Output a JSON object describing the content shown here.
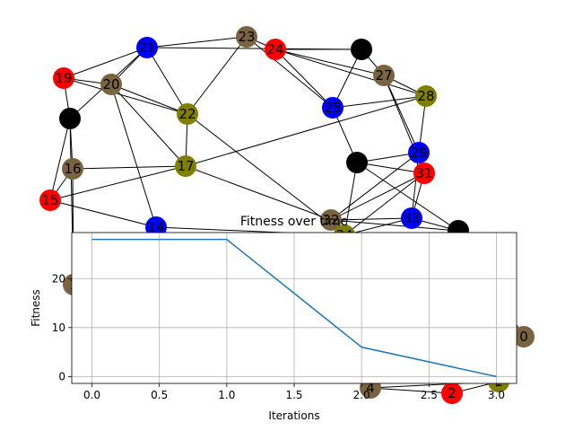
{
  "colors": {
    "blue": "#0000ff",
    "red": "#ff0000",
    "brown": "#7a6440",
    "olive": "#808000",
    "black": "#000000",
    "line": "#1f77b4",
    "grid": "#b0b0b0"
  },
  "graph": {
    "nodes": [
      {
        "id": "21",
        "color": "blue"
      },
      {
        "id": "23",
        "color": "brown"
      },
      {
        "id": "24",
        "color": "red"
      },
      {
        "id": "",
        "color": "black"
      },
      {
        "id": "19",
        "color": "red"
      },
      {
        "id": "20",
        "color": "brown"
      },
      {
        "id": "27",
        "color": "brown"
      },
      {
        "id": "28",
        "color": "olive"
      },
      {
        "id": "",
        "color": "black"
      },
      {
        "id": "22",
        "color": "olive"
      },
      {
        "id": "25",
        "color": "blue"
      },
      {
        "id": "29",
        "color": "blue"
      },
      {
        "id": "16",
        "color": "brown"
      },
      {
        "id": "17",
        "color": "olive"
      },
      {
        "id": "",
        "color": "black"
      },
      {
        "id": "31",
        "color": "red"
      },
      {
        "id": "15",
        "color": "red"
      },
      {
        "id": "14",
        "color": "blue"
      },
      {
        "id": "32",
        "color": "brown"
      },
      {
        "id": "33",
        "color": "blue"
      },
      {
        "id": "",
        "color": "black"
      },
      {
        "id": "34",
        "color": "olive"
      },
      {
        "id": "1",
        "color": "brown"
      },
      {
        "id": "0",
        "color": "brown"
      },
      {
        "id": "4",
        "color": "brown"
      },
      {
        "id": "2",
        "color": "red"
      },
      {
        "id": "1",
        "color": "olive"
      }
    ]
  },
  "chart_data": {
    "type": "line",
    "title": "Fitness over time",
    "xlabel": "Iterations",
    "ylabel": "Fitness",
    "x": [
      0,
      1,
      2,
      3
    ],
    "series": [
      {
        "values": [
          28,
          28,
          6,
          0
        ]
      }
    ],
    "xlim": [
      -0.15,
      3.15
    ],
    "ylim": [
      -1.4,
      29.4
    ],
    "xticks": [
      "0.0",
      "0.5",
      "1.0",
      "1.5",
      "2.0",
      "2.5",
      "3.0"
    ],
    "yticks": [
      "0",
      "10",
      "20"
    ],
    "grid": true
  }
}
